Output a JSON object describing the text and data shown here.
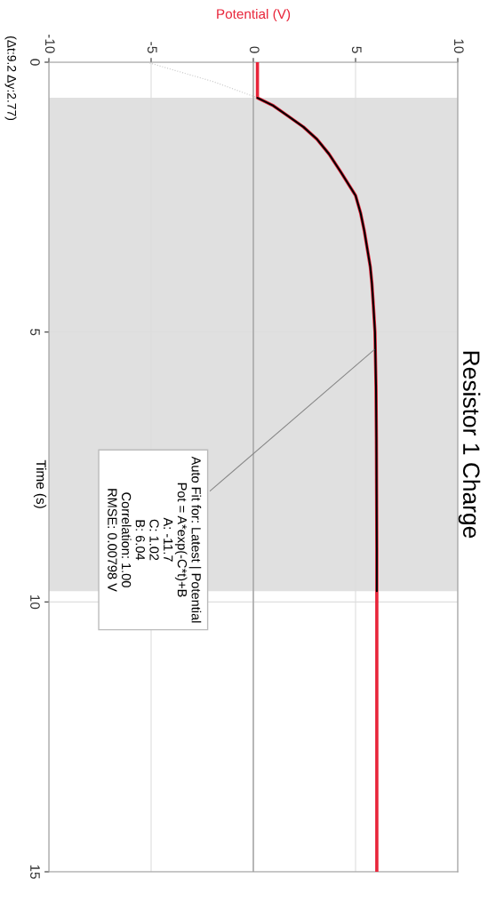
{
  "chart_data": {
    "type": "line",
    "title": "Resistor 1 Charge",
    "xlabel": "Potential (V)",
    "ylabel": "Time (s)",
    "xlim": [
      -10,
      10
    ],
    "xticks": [
      -10,
      -5,
      0,
      5,
      10
    ],
    "ylim": [
      15,
      0
    ],
    "yticks": [
      0,
      5,
      10,
      15
    ],
    "grid": true,
    "series": [
      {
        "color": "#e8253a",
        "line_style": "solid",
        "x": [
          0.2,
          0.2,
          0.95,
          1.67,
          2.45,
          3.12,
          3.7,
          4.27,
          5.0,
          5.25,
          5.43,
          5.72,
          5.8,
          5.87,
          5.95,
          6.0,
          6.02,
          6.03,
          6.04,
          6.04,
          6.04,
          6.04
        ],
        "values": [
          0,
          0.66,
          0.8,
          0.99,
          1.2,
          1.43,
          1.7,
          2.03,
          2.47,
          2.8,
          3.13,
          3.79,
          4.1,
          4.5,
          5.0,
          6.0,
          7.0,
          8.0,
          9.0,
          10,
          12,
          15
        ]
      },
      {
        "color": "#000000",
        "line_style": "solid",
        "x": [
          0.2,
          0.95,
          1.67,
          2.45,
          3.12,
          3.7,
          4.27,
          5.0,
          5.25,
          5.43,
          5.72,
          5.8,
          5.87,
          5.95,
          6.0,
          6.02,
          6.03,
          6.04,
          6.04
        ],
        "values": [
          0.66,
          0.8,
          0.99,
          1.2,
          1.43,
          1.7,
          2.03,
          2.47,
          2.8,
          3.13,
          3.79,
          4.1,
          4.5,
          5.0,
          6.0,
          7.0,
          8.0,
          9.0,
          9.8
        ]
      },
      {
        "color": "#c8c8c8",
        "line_style": "dotted",
        "x": [
          -5.2,
          -1.96,
          0.2
        ],
        "values": [
          0,
          0.36,
          0.66
        ]
      }
    ],
    "ref_lines": [
      {
        "axis": "x",
        "value": 0,
        "color": "#a0a0a0"
      }
    ],
    "bands": [
      {
        "axis": "y",
        "from": 0.66,
        "to": 9.8,
        "color": "#e0e0e0"
      }
    ],
    "annotations": [
      {
        "text": "Auto Fit for: Latest | Potential\nPot = A*exp(-C*t)+B\nA: -11.7\nC: 1.02\nB: 6.04\nCorrelation: 1.00\nRMSE: 0.00798 V",
        "x": 6.0,
        "y": 5.3
      },
      "(Δt:9.2 Δy:2.77)"
    ]
  }
}
